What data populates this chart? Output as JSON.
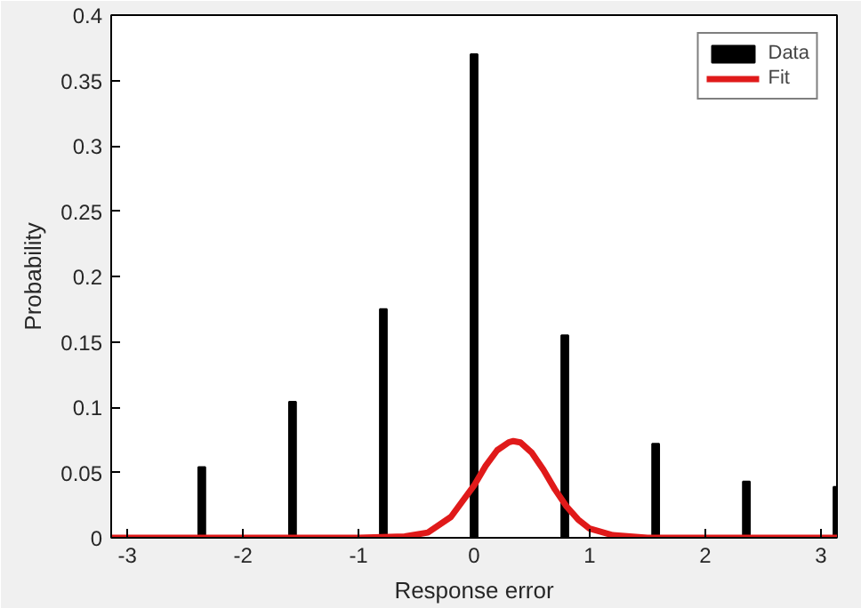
{
  "chart_data": {
    "type": "bar",
    "xlabel": "Response error",
    "ylabel": "Probability",
    "x": [
      -2.356,
      -1.571,
      -0.785,
      0,
      0.785,
      1.571,
      2.356,
      3.14
    ],
    "series": [
      {
        "name": "Data",
        "color": "#000000",
        "values": [
          0.054,
          0.104,
          0.175,
          0.37,
          0.155,
          0.072,
          0.043,
          0.039
        ]
      },
      {
        "name": "Fit",
        "type": "line",
        "color": "#e01a1a",
        "x": [
          -3.14,
          -1.0,
          -0.6,
          -0.4,
          -0.2,
          0,
          0.1,
          0.2,
          0.3,
          0.34,
          0.4,
          0.5,
          0.6,
          0.7,
          0.8,
          0.9,
          1.0,
          1.2,
          1.5,
          3.14
        ],
        "values": [
          0,
          0,
          0.001,
          0.004,
          0.016,
          0.04,
          0.055,
          0.067,
          0.073,
          0.074,
          0.073,
          0.065,
          0.052,
          0.037,
          0.024,
          0.014,
          0.007,
          0.002,
          0,
          0
        ]
      }
    ],
    "xlim": [
      -3.14,
      3.14
    ],
    "ylim": [
      0,
      0.4
    ],
    "xticks": [
      -3,
      -2,
      -1,
      0,
      1,
      2,
      3
    ],
    "yticks": [
      0,
      0.05,
      0.1,
      0.15,
      0.2,
      0.25,
      0.3,
      0.35,
      0.4
    ],
    "grid": false,
    "legend": "top right",
    "line_style": "solid"
  }
}
